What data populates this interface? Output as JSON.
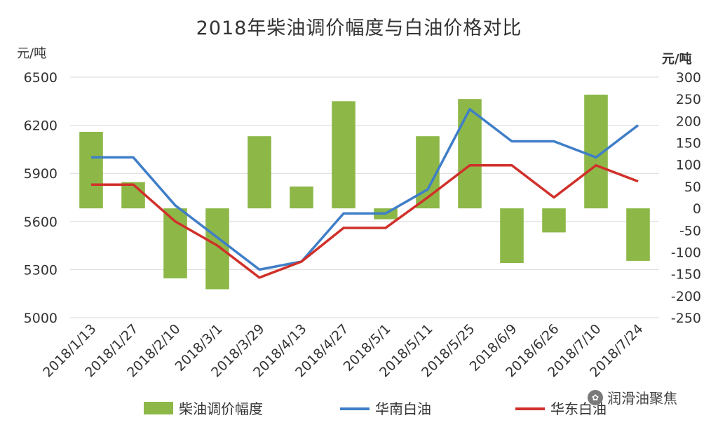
{
  "title": "2018年柴油调价幅度与白油价格对比",
  "left_unit": "元/吨",
  "right_unit": "元/吨",
  "watermark": "润滑油聚焦",
  "colors": {
    "bar": "#8DB848",
    "south": "#3F7EC8",
    "east": "#D0302A",
    "grid": "#d9d9d9"
  },
  "chart_data": {
    "type": "bar",
    "title": "2018年柴油调价幅度与白油价格对比",
    "categories": [
      "2018/1/13",
      "2018/1/27",
      "2018/2/10",
      "2018/3/1",
      "2018/3/29",
      "2018/4/13",
      "2018/4/27",
      "2018/5/1",
      "2018/5/11",
      "2018/5/25",
      "2018/6/9",
      "2018/6/26",
      "2018/7/10",
      "2018/7/24"
    ],
    "y_left": {
      "label": "元/吨",
      "range": [
        5000,
        6500
      ],
      "ticks": [
        5000,
        5300,
        5600,
        5900,
        6200,
        6500
      ]
    },
    "y_right": {
      "label": "元/吨",
      "range": [
        -250,
        300
      ],
      "ticks": [
        -250,
        -200,
        -150,
        -100,
        -50,
        0,
        50,
        100,
        150,
        200,
        250,
        300
      ]
    },
    "grid": true,
    "legend_position": "bottom",
    "series": [
      {
        "name": "柴油调价幅度",
        "type": "bar",
        "axis": "right",
        "color": "#8DB848",
        "values": [
          175,
          60,
          -160,
          -185,
          165,
          50,
          245,
          -25,
          165,
          250,
          -125,
          -55,
          260,
          -120
        ]
      },
      {
        "name": "华南白油",
        "type": "line",
        "axis": "left",
        "color": "#3F7EC8",
        "values": [
          6000,
          6000,
          5700,
          5500,
          5300,
          5350,
          5650,
          5650,
          5800,
          6300,
          6100,
          6100,
          6000,
          6200
        ]
      },
      {
        "name": "华东白油",
        "type": "line",
        "axis": "left",
        "color": "#D0302A",
        "values": [
          5830,
          5830,
          5600,
          5450,
          5250,
          5350,
          5560,
          5560,
          5750,
          5950,
          5950,
          5750,
          5950,
          5850
        ]
      }
    ]
  }
}
